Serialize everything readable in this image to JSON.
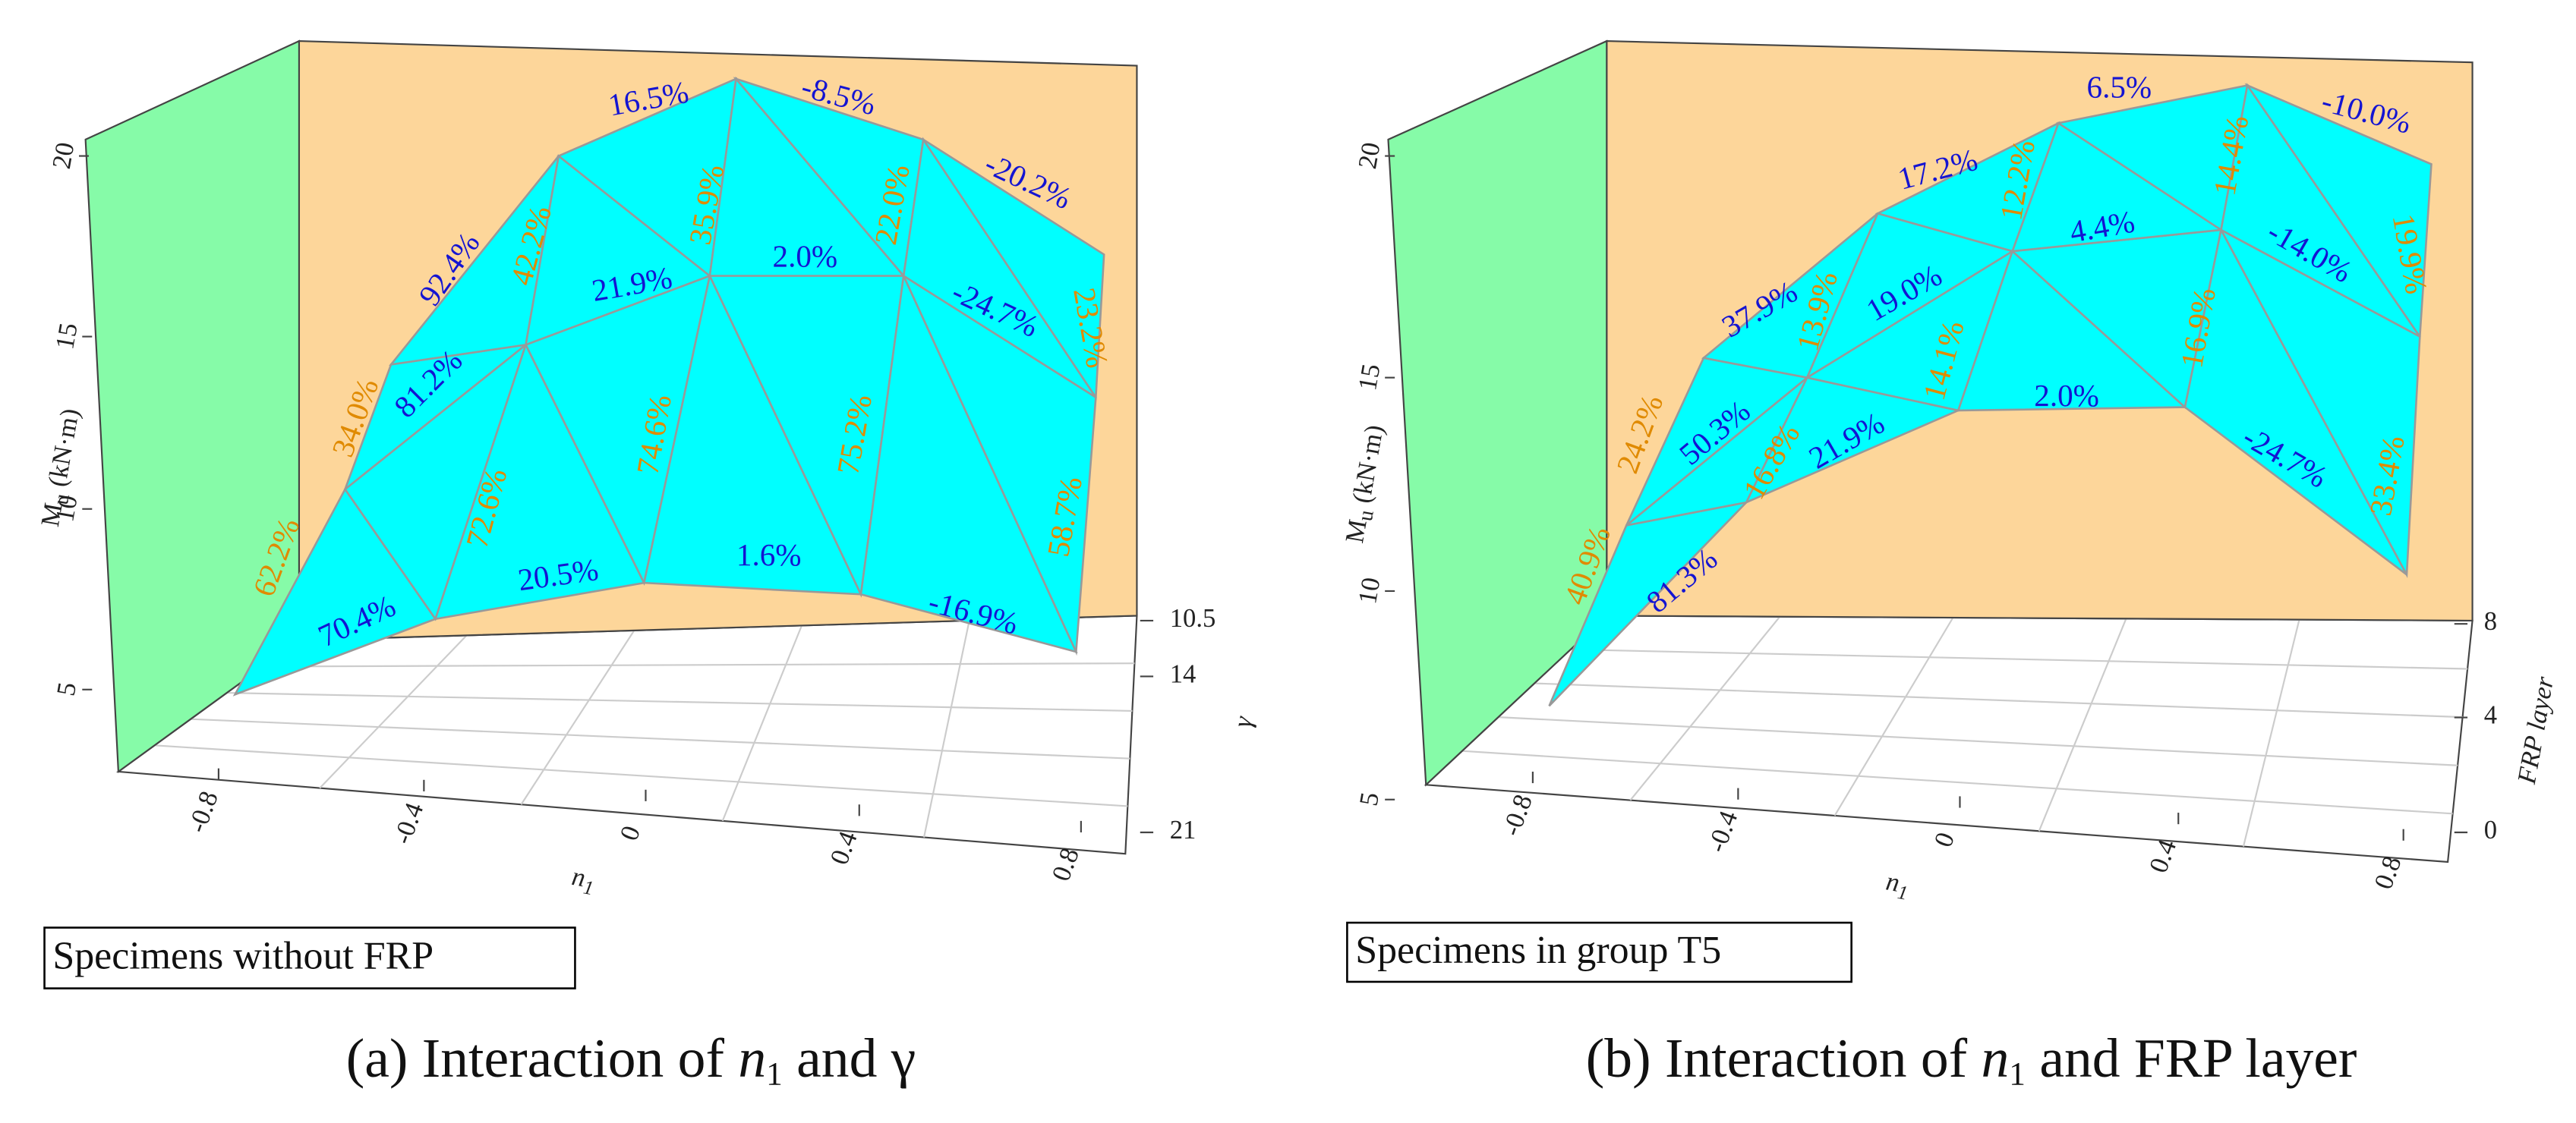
{
  "panels": [
    {
      "box_label": "Specimens without FRP",
      "caption": {
        "prefix": "(a) Interaction of ",
        "var": "n",
        "sub": "1",
        "suffix": " and γ"
      },
      "z_label": {
        "main": "M",
        "sub": "u",
        "unit": " (kN·m)"
      },
      "x_label": {
        "var": "n",
        "sub": "1"
      },
      "y_label": "γ",
      "xticks": [
        -0.8,
        -0.4,
        0,
        0.4,
        0.8
      ],
      "zticks": [
        20,
        15,
        10,
        5
      ],
      "yticks": [
        10.5,
        14,
        21
      ],
      "annotations": [
        "16.5%",
        "-8.5%",
        "-20.2%",
        "92.4%",
        "42.2%",
        "35.9%",
        "21.9%",
        "2.0%",
        "22.0%",
        "-24.7%",
        "23.2%",
        "34.0%",
        "81.2%",
        "72.6%",
        "74.6%",
        "75.2%",
        "58.7%",
        "62.2%",
        "70.4%",
        "20.5%",
        "1.6%",
        "-16.9%"
      ]
    },
    {
      "box_label": "Specimens in group T5",
      "caption": {
        "prefix": "(b) Interaction of ",
        "var": "n",
        "sub": "1",
        "suffix": " and FRP layer"
      },
      "z_label": {
        "main": "M",
        "sub": "u",
        "unit": " (kN·m)"
      },
      "x_label": {
        "var": "n",
        "sub": "1"
      },
      "y_label": "FRP layer",
      "xticks": [
        -0.8,
        -0.4,
        0,
        0.4,
        0.8
      ],
      "zticks": [
        20,
        15,
        10,
        5
      ],
      "yticks": [
        8,
        4,
        0
      ],
      "annotations": [
        "6.5%",
        "-10.0%",
        "17.2%",
        "14.4%",
        "12.2%",
        "19.9%",
        "37.9%",
        "19.0%",
        "4.4%",
        "-14.0%",
        "13.9%",
        "14.1%",
        "16.9%",
        "50.3%",
        "24.2%",
        "16.8%",
        "21.9%",
        "2.0%",
        "-24.7%",
        "33.4%",
        "40.9%",
        "81.3%"
      ]
    }
  ]
}
